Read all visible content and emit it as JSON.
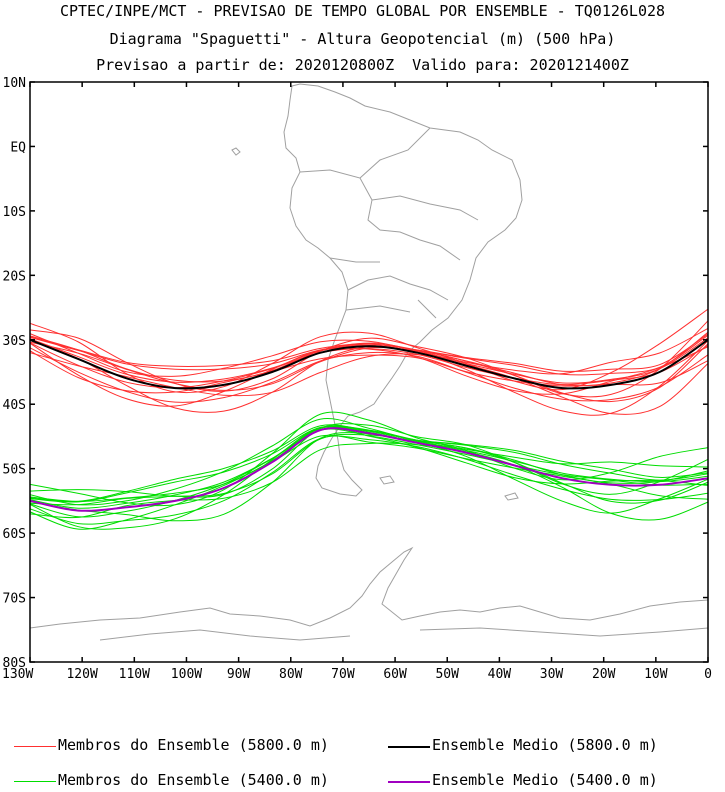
{
  "header": {
    "line1": "CPTEC/INPE/MCT - PREVISAO DE TEMPO GLOBAL POR ENSEMBLE - TQ0126L028",
    "line2": "Diagrama \"Spaguetti\" - Altura Geopotencial (m) (500 hPa)",
    "line3": "Previsao a partir de: 2020120800Z  Valido para: 2020121400Z"
  },
  "map": {
    "lon_range": [
      -130,
      0
    ],
    "lat_range": [
      -80,
      10
    ],
    "lat_ticks": [
      "10N",
      "EQ",
      "10S",
      "20S",
      "30S",
      "40S",
      "50S",
      "60S",
      "70S",
      "80S"
    ],
    "lon_ticks": [
      "130W",
      "120W",
      "110W",
      "100W",
      "90W",
      "80W",
      "70W",
      "60W",
      "50W",
      "40W",
      "30W",
      "20W",
      "10W",
      "0"
    ],
    "coastline_color": "#a0a0a0"
  },
  "contours": [
    {
      "level_m": 5800,
      "member_color": "#ff3030",
      "mean_color": "#000000",
      "mean_lat": [
        -30,
        -33,
        -36,
        -37.5,
        -37,
        -35,
        -32,
        -31,
        -32,
        -34,
        -36,
        -37.5,
        -37,
        -35,
        -30
      ]
    },
    {
      "level_m": 5400,
      "member_color": "#00dd00",
      "mean_color": "#a000c0",
      "mean_lat": [
        -55,
        -56.5,
        -56,
        -55,
        -53,
        -49,
        -44,
        -44.5,
        -46,
        -47.5,
        -49.5,
        -51.5,
        -52.5,
        -52.5,
        -51.5
      ]
    }
  ],
  "legend": {
    "members_5800": "Membros do Ensemble (5800.0 m)",
    "mean_5800": "Ensemble Medio (5800.0 m)",
    "members_5400": "Membros do Ensemble (5400.0 m)",
    "mean_5400": "Ensemble Medio (5400.0 m)"
  }
}
